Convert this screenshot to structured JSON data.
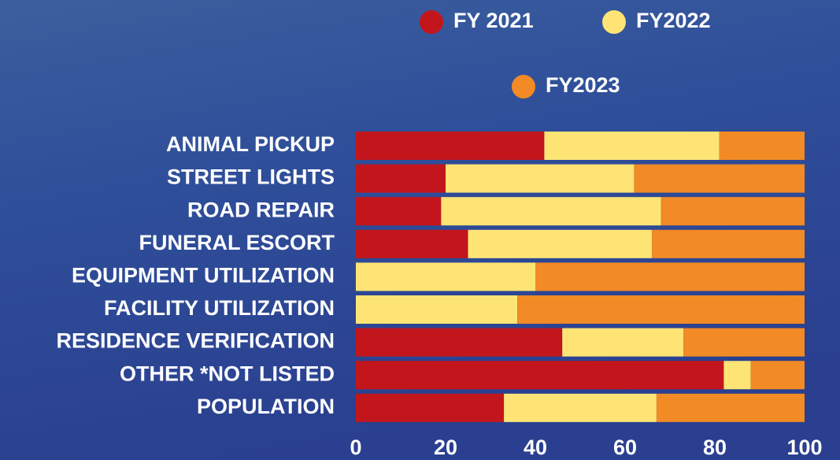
{
  "chart_data": {
    "type": "stacked-bar-horizontal",
    "categories": [
      "ANIMAL PICKUP",
      "STREET LIGHTS",
      "ROAD REPAIR",
      "FUNERAL ESCORT",
      "EQUIPMENT UTILIZATION",
      "FACILITY UTILIZATION",
      "RESIDENCE VERIFICATION",
      "OTHER *NOT LISTED",
      "POPULATION"
    ],
    "series": [
      {
        "name": "FY 2021",
        "color": "#c3161c",
        "values": [
          42,
          20,
          19,
          25,
          0,
          0,
          46,
          82,
          33
        ]
      },
      {
        "name": "FY2022",
        "color": "#fde475",
        "values": [
          39,
          42,
          49,
          41,
          40,
          36,
          27,
          6,
          34
        ]
      },
      {
        "name": "FY2023",
        "color": "#f28a25",
        "values": [
          19,
          38,
          32,
          34,
          60,
          64,
          27,
          12,
          33
        ]
      }
    ],
    "xlim": [
      0,
      100
    ],
    "xticks": [
      0,
      20,
      40,
      60,
      80,
      100
    ]
  }
}
